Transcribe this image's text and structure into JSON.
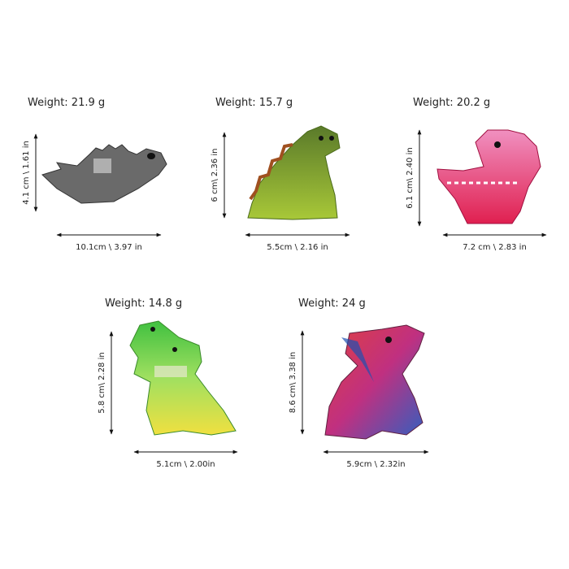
{
  "items": [
    {
      "weight": "Weight:  21.9 g",
      "height": "4.1 cm \\ 1.61 in",
      "width": "10.1cm \\ 3.97 in"
    },
    {
      "weight": "Weight:  15.7 g",
      "height": "6 cm\\ 2.36 in",
      "width": "5.5cm \\ 2.16 in"
    },
    {
      "weight": "Weight:  20.2 g",
      "height": "6.1 cm\\ 2.40 in",
      "width": "7.2 cm \\ 2.83 in"
    },
    {
      "weight": "Weight:  14.8 g",
      "height": "5.8 cm\\ 2.28 in",
      "width": "5.1cm \\ 2.00in"
    },
    {
      "weight": "Weight:  24 g",
      "height": "8.6 cm\\ 3.38 in",
      "width": "5.9cm \\ 2.32in"
    }
  ]
}
